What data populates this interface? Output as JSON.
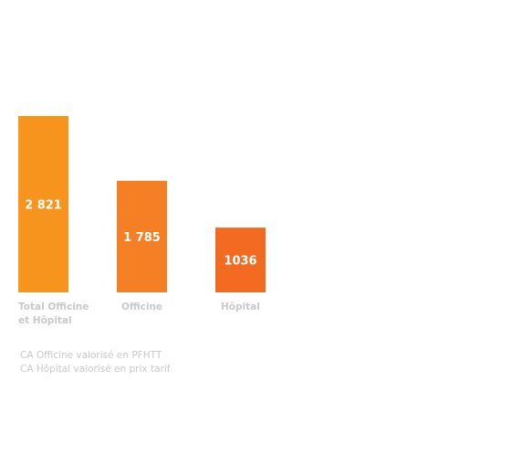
{
  "chart_data": {
    "type": "bar",
    "categories": [
      "Total Officine et Hôpital",
      "Officine",
      "Hôpital"
    ],
    "category_label_lines": [
      [
        "Total Officine",
        "et Hôpital"
      ],
      [
        "Officine"
      ],
      [
        "Hôpital"
      ]
    ],
    "values": [
      2821,
      1785,
      1036
    ],
    "value_labels": [
      "2 821",
      "1 785",
      "1036"
    ],
    "bar_colors": [
      "#f7941d",
      "#f47f24",
      "#f26b21"
    ],
    "ylim": [
      0,
      3000
    ],
    "grid": false,
    "title": "",
    "xlabel": "",
    "ylabel": ""
  },
  "notes": [
    "CA Officine valorisé en PFHTT",
    "CA Hôpital valorisé en prix tarif"
  ],
  "colors": {
    "label_text": "#c9c9c9",
    "value_text": "#ffffff",
    "background": "#ffffff"
  }
}
